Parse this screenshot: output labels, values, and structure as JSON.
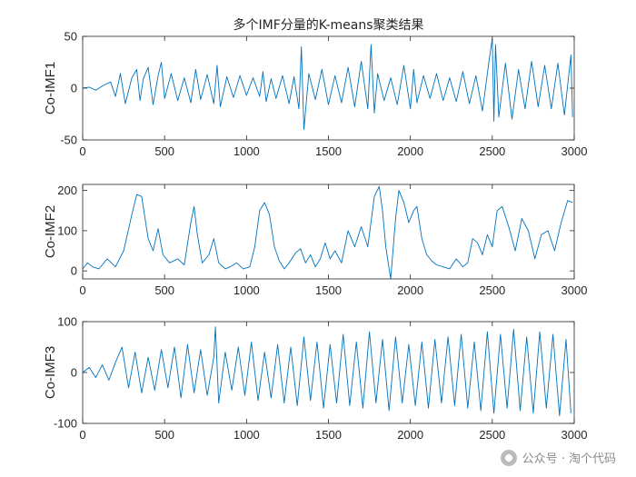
{
  "chart_data": [
    {
      "type": "line",
      "title": "多个IMF分量的K-means聚类结果",
      "ylabel": "Co-IMF1",
      "xlim": [
        0,
        3000
      ],
      "ylim": [
        -50,
        50
      ],
      "xticks": [
        "0",
        "500",
        "1000",
        "1500",
        "2000",
        "2500",
        "3000"
      ],
      "yticks": [
        "-50",
        "0",
        "50"
      ],
      "line_color": "#0072BD",
      "series": [
        {
          "x": [
            0,
            40,
            80,
            130,
            170,
            200,
            230,
            260,
            300,
            330,
            350,
            370,
            400,
            430,
            460,
            480,
            500,
            540,
            580,
            620,
            660,
            690,
            720,
            760,
            800,
            820,
            840,
            880,
            920,
            960,
            1000,
            1040,
            1080,
            1100,
            1120,
            1150,
            1180,
            1220,
            1260,
            1290,
            1320,
            1335,
            1350,
            1380,
            1420,
            1460,
            1500,
            1540,
            1580,
            1620,
            1660,
            1700,
            1740,
            1760,
            1780,
            1800,
            1840,
            1880,
            1920,
            1960,
            2000,
            2020,
            2040,
            2080,
            2120,
            2160,
            2200,
            2240,
            2280,
            2320,
            2360,
            2400,
            2440,
            2480,
            2500,
            2510,
            2520,
            2540,
            2580,
            2620,
            2660,
            2700,
            2740,
            2780,
            2820,
            2860,
            2900,
            2940,
            2980,
            2990
          ],
          "y": [
            0,
            1,
            -2,
            3,
            6,
            -8,
            14,
            -15,
            10,
            18,
            -12,
            9,
            20,
            -16,
            12,
            25,
            -10,
            14,
            -12,
            10,
            -14,
            18,
            -11,
            13,
            -15,
            22,
            -18,
            11,
            -9,
            12,
            -7,
            10,
            -8,
            16,
            -13,
            9,
            -10,
            12,
            -15,
            11,
            -20,
            40,
            -40,
            14,
            -11,
            18,
            -16,
            12,
            -14,
            20,
            -18,
            26,
            -20,
            42,
            -24,
            14,
            -12,
            10,
            -16,
            22,
            -20,
            18,
            -14,
            12,
            -10,
            14,
            -12,
            10,
            -13,
            16,
            -15,
            12,
            -22,
            26,
            48,
            -32,
            42,
            -28,
            24,
            -30,
            18,
            -20,
            26,
            -18,
            22,
            -20,
            24,
            -26,
            32,
            -28
          ]
        }
      ]
    },
    {
      "type": "line",
      "title": "",
      "ylabel": "Co-IMF2",
      "xlim": [
        0,
        3000
      ],
      "ylim": [
        -20,
        215
      ],
      "xticks": [
        "0",
        "500",
        "1000",
        "1500",
        "2000",
        "2500",
        "3000"
      ],
      "yticks": [
        "0",
        "100",
        "200"
      ],
      "line_color": "#0072BD",
      "series": [
        {
          "x": [
            0,
            30,
            60,
            100,
            150,
            200,
            250,
            300,
            330,
            360,
            400,
            430,
            460,
            490,
            530,
            580,
            620,
            660,
            680,
            700,
            730,
            770,
            800,
            830,
            870,
            900,
            940,
            980,
            1020,
            1050,
            1080,
            1110,
            1140,
            1170,
            1200,
            1230,
            1260,
            1300,
            1330,
            1360,
            1390,
            1420,
            1450,
            1480,
            1510,
            1540,
            1580,
            1620,
            1660,
            1700,
            1740,
            1780,
            1810,
            1830,
            1850,
            1880,
            1910,
            1930,
            1960,
            1990,
            2020,
            2040,
            2070,
            2100,
            2130,
            2160,
            2200,
            2240,
            2280,
            2320,
            2350,
            2380,
            2410,
            2440,
            2470,
            2500,
            2530,
            2560,
            2600,
            2640,
            2680,
            2720,
            2760,
            2800,
            2840,
            2880,
            2920,
            2960,
            2990
          ],
          "y": [
            5,
            20,
            10,
            5,
            30,
            10,
            50,
            140,
            190,
            185,
            80,
            50,
            105,
            40,
            20,
            30,
            15,
            120,
            160,
            90,
            20,
            40,
            80,
            20,
            5,
            10,
            20,
            5,
            10,
            60,
            150,
            170,
            140,
            60,
            25,
            5,
            20,
            45,
            55,
            20,
            40,
            10,
            30,
            70,
            30,
            50,
            20,
            100,
            60,
            110,
            60,
            185,
            210,
            150,
            60,
            -20,
            130,
            200,
            170,
            120,
            150,
            160,
            80,
            40,
            25,
            15,
            10,
            5,
            30,
            10,
            20,
            80,
            70,
            40,
            90,
            60,
            150,
            160,
            110,
            50,
            130,
            100,
            30,
            90,
            100,
            50,
            120,
            175,
            170
          ]
        }
      ]
    },
    {
      "type": "line",
      "title": "",
      "ylabel": "Co-IMF3",
      "xlim": [
        0,
        3000
      ],
      "ylim": [
        -100,
        100
      ],
      "xticks": [
        "0",
        "500",
        "1000",
        "1500",
        "2000",
        "2500",
        "3000"
      ],
      "yticks": [
        "-100",
        "0",
        "100"
      ],
      "line_color": "#0072BD",
      "series": [
        {
          "x": [
            0,
            40,
            80,
            120,
            160,
            200,
            240,
            280,
            320,
            360,
            400,
            440,
            480,
            520,
            560,
            600,
            640,
            680,
            720,
            760,
            800,
            810,
            830,
            870,
            910,
            950,
            990,
            1030,
            1070,
            1110,
            1150,
            1190,
            1230,
            1270,
            1310,
            1350,
            1390,
            1430,
            1470,
            1510,
            1550,
            1590,
            1630,
            1670,
            1710,
            1750,
            1790,
            1830,
            1870,
            1910,
            1950,
            1990,
            2030,
            2070,
            2110,
            2150,
            2190,
            2230,
            2270,
            2310,
            2350,
            2390,
            2430,
            2470,
            2510,
            2550,
            2590,
            2630,
            2670,
            2710,
            2750,
            2790,
            2830,
            2870,
            2910,
            2950,
            2980
          ],
          "y": [
            0,
            10,
            -10,
            15,
            -15,
            20,
            50,
            -30,
            40,
            -40,
            30,
            -35,
            45,
            -30,
            50,
            -50,
            55,
            -40,
            45,
            -45,
            30,
            90,
            -60,
            40,
            -35,
            50,
            -45,
            60,
            -55,
            40,
            -50,
            55,
            -60,
            50,
            -65,
            70,
            -55,
            60,
            -70,
            55,
            -60,
            75,
            -65,
            60,
            -70,
            80,
            -60,
            65,
            -75,
            70,
            -60,
            55,
            -65,
            60,
            -70,
            65,
            -60,
            70,
            -65,
            75,
            -70,
            60,
            -75,
            80,
            -80,
            75,
            -70,
            85,
            -75,
            70,
            -80,
            80,
            -70,
            75,
            -85,
            65,
            -80
          ]
        }
      ]
    }
  ],
  "watermark": {
    "text": "公众号 · 淘个代码",
    "icon": "wechat-icon"
  }
}
